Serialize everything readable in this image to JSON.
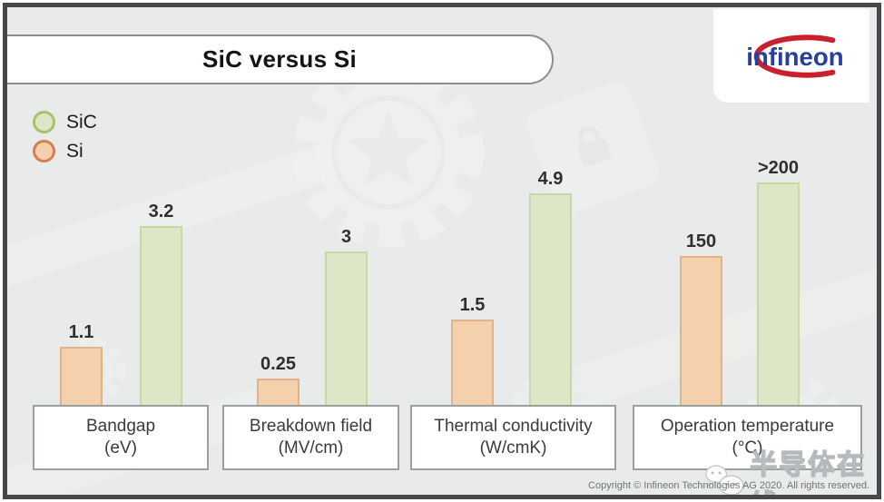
{
  "title": "SiC versus Si",
  "logo": {
    "brand": "infineon"
  },
  "legend": {
    "items": [
      {
        "label": "SiC"
      },
      {
        "label": "Si"
      }
    ]
  },
  "chart_data": {
    "type": "bar",
    "title": "SiC versus Si",
    "categories": [
      "Bandgap (eV)",
      "Breakdown field (MV/cm)",
      "Thermal conductivity (W/cmK)",
      "Operation temperature (°C)"
    ],
    "series": [
      {
        "name": "Si",
        "values": [
          1.1,
          0.25,
          1.5,
          150
        ],
        "display_values": [
          "1.1",
          "0.25",
          "1.5",
          "150"
        ],
        "color": "#f4d0ad"
      },
      {
        "name": "SiC",
        "values": [
          3.2,
          3,
          4.9,
          200
        ],
        "display_values": [
          "3.2",
          "3",
          "4.9",
          ">200"
        ],
        "color": "#dde7c7"
      }
    ],
    "groups": [
      {
        "label": "Bandgap",
        "unit": "(eV)",
        "si": {
          "display": "1.1"
        },
        "sic": {
          "display": "3.2"
        }
      },
      {
        "label": "Breakdown field",
        "unit": "(MV/cm)",
        "si": {
          "display": "0.25"
        },
        "sic": {
          "display": "3"
        }
      },
      {
        "label": "Thermal conductivity",
        "unit": "(W/cmK)",
        "si": {
          "display": "1.5"
        },
        "sic": {
          "display": "4.9"
        }
      },
      {
        "label": "Operation temperature",
        "unit": "(°C)",
        "si": {
          "display": "150"
        },
        "sic": {
          "display": ">200"
        }
      }
    ],
    "legend_position": "top-left",
    "grid": false,
    "note": "bars are illustrative; each category group uses its own scale"
  },
  "watermark": {
    "text": "半导体在线"
  },
  "footer": {
    "copyright": "Copyright © Infineon Technologies AG 2020. All rights reserved."
  },
  "colors": {
    "background": "#e9ebea",
    "frame_border": "#46494b",
    "si_fill": "#f4d0ad",
    "si_stroke": "#e2b289",
    "sic_fill": "#dde7c7",
    "sic_stroke": "#c9d7a4",
    "legend_si_stroke": "#d47e52",
    "legend_sic_stroke": "#a8c268",
    "logo_blue": "#2a3f9c",
    "logo_red": "#c9202e"
  }
}
